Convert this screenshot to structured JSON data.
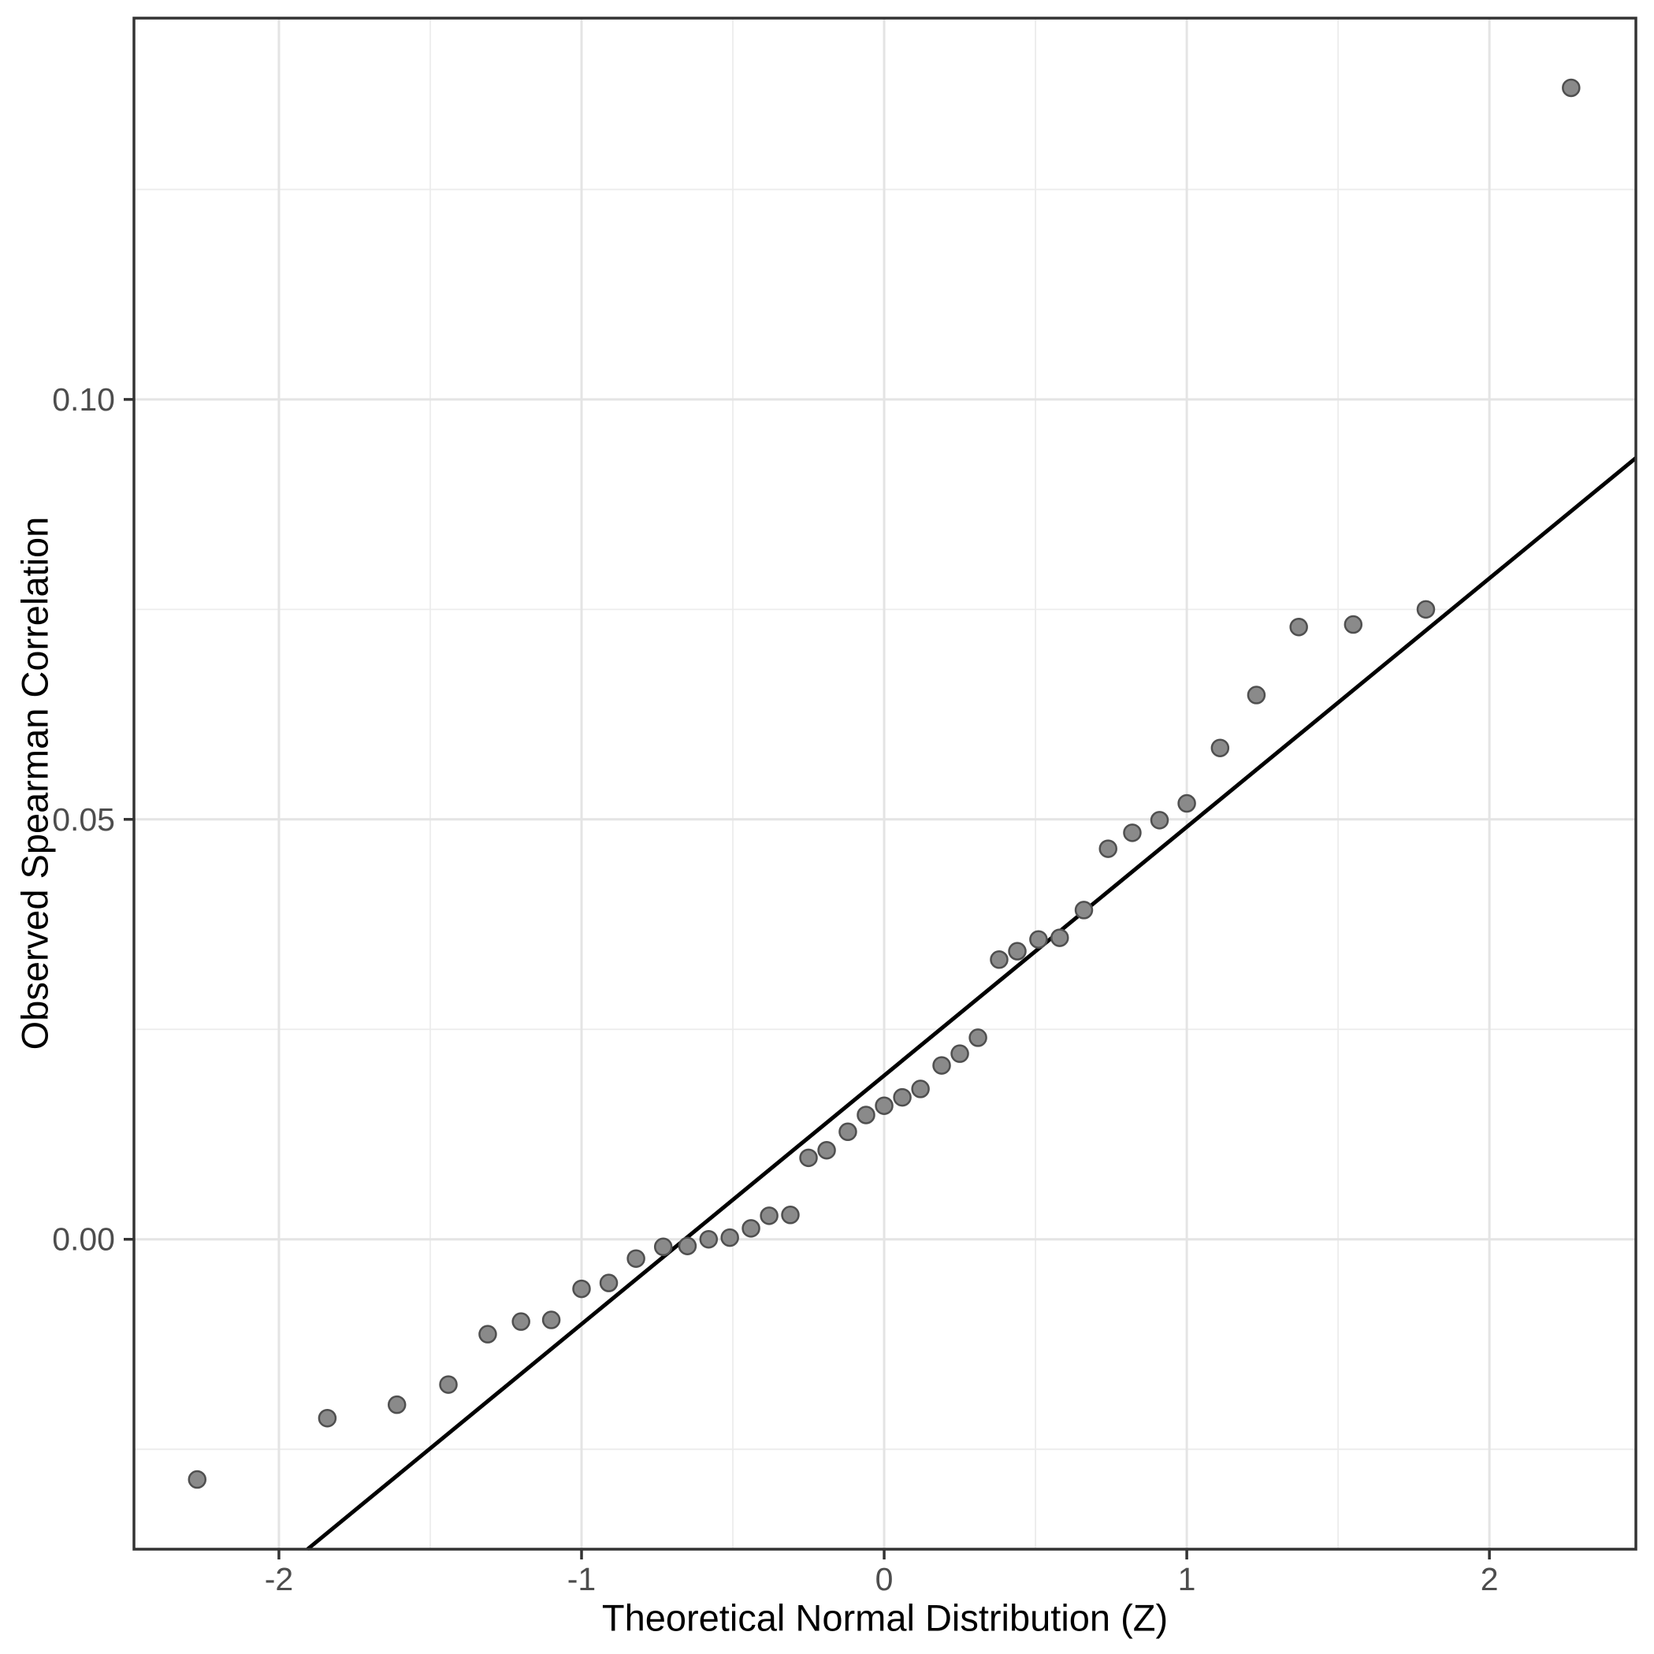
{
  "chart_data": {
    "type": "scatter",
    "title": "",
    "xlabel": "Theoretical Normal Distribution (Z)",
    "ylabel": "Observed Spearman Correlation",
    "legend": false,
    "grid": true,
    "x_axis": {
      "min": -2.479,
      "max": 2.484,
      "major_ticks": [
        -2,
        -1,
        0,
        1,
        2
      ],
      "tick_labels": [
        "-2",
        "-1",
        "0",
        "1",
        "2"
      ],
      "minor_ticks": [
        -1.5,
        -0.5,
        0.5,
        1.5
      ]
    },
    "y_axis": {
      "min": -0.0369,
      "max": 0.1454,
      "major_ticks": [
        0.0,
        0.05,
        0.1
      ],
      "tick_labels": [
        "0.00",
        "0.05",
        "0.10"
      ],
      "minor_ticks": [
        -0.025,
        0.025,
        0.075,
        0.125
      ]
    },
    "points": [
      [
        -2.27,
        -0.0286
      ],
      [
        -1.84,
        -0.0213
      ],
      [
        -1.61,
        -0.0197
      ],
      [
        -1.44,
        -0.0173
      ],
      [
        -1.31,
        -0.0113
      ],
      [
        -1.2,
        -0.0098
      ],
      [
        -1.1,
        -0.0096
      ],
      [
        -1.0,
        -0.0059
      ],
      [
        -0.91,
        -0.0052
      ],
      [
        -0.82,
        -0.0023
      ],
      [
        -0.73,
        -0.0009
      ],
      [
        -0.65,
        -0.0008
      ],
      [
        -0.58,
        0.0
      ],
      [
        -0.51,
        0.0002
      ],
      [
        -0.44,
        0.0013
      ],
      [
        -0.38,
        0.0028
      ],
      [
        -0.31,
        0.0029
      ],
      [
        -0.25,
        0.0097
      ],
      [
        -0.19,
        0.0106
      ],
      [
        -0.12,
        0.0128
      ],
      [
        -0.06,
        0.0148
      ],
      [
        0.0,
        0.0159
      ],
      [
        0.06,
        0.0169
      ],
      [
        0.12,
        0.0179
      ],
      [
        0.19,
        0.0207
      ],
      [
        0.25,
        0.0221
      ],
      [
        0.31,
        0.024
      ],
      [
        0.38,
        0.0333
      ],
      [
        0.44,
        0.0343
      ],
      [
        0.51,
        0.0357
      ],
      [
        0.58,
        0.0359
      ],
      [
        0.66,
        0.0392
      ],
      [
        0.74,
        0.0465
      ],
      [
        0.82,
        0.0484
      ],
      [
        0.91,
        0.0499
      ],
      [
        1.0,
        0.0519
      ],
      [
        1.11,
        0.0585
      ],
      [
        1.23,
        0.0648
      ],
      [
        1.37,
        0.0729
      ],
      [
        1.55,
        0.0732
      ],
      [
        1.79,
        0.075
      ],
      [
        2.27,
        0.1371
      ]
    ],
    "reference_line": {
      "intercept": 0.0195,
      "slope": 0.0296
    }
  },
  "style": {
    "background": "#ffffff",
    "grid_major_color": "#e4e4e4",
    "grid_minor_color": "#ececec",
    "panel_border_color": "#333333",
    "tick_color": "#333333",
    "tick_label_color": "#4d4d4d",
    "axis_title_color": "#000000",
    "point_fill": "#8a8a8a",
    "point_stroke": "#4f4f4f",
    "reference_line_color": "#000000"
  }
}
